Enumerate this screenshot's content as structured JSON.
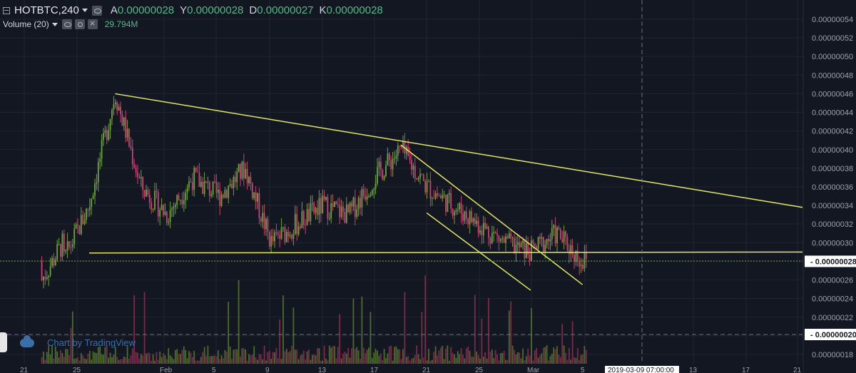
{
  "legend": {
    "symbol": "HOTBTC",
    "interval": "240",
    "ohlc": [
      {
        "key": "A",
        "value": "0.00000028"
      },
      {
        "key": "Y",
        "value": "0.00000028"
      },
      {
        "key": "D",
        "value": "0.00000027"
      },
      {
        "key": "K",
        "value": "0.00000028"
      }
    ],
    "volume_label": "Volume (20)",
    "volume_value": "29.794M"
  },
  "watermark": "Chart by TradingView",
  "colors": {
    "background": "#131722",
    "up": "#6ba539",
    "down": "#d13f75",
    "trendline": "#e3e660",
    "grid": "#1f2430",
    "text": "#9aa0ad",
    "volume_up": "#4d6b2a",
    "volume_down": "#7c2a4a"
  },
  "price_axis": {
    "labels": [
      "0.00000054",
      "0.00000052",
      "0.00000050",
      "0.00000048",
      "0.00000046",
      "0.00000044",
      "0.00000042",
      "0.00000040",
      "0.00000038",
      "0.00000036",
      "0.00000034",
      "0.00000032",
      "0.00000030",
      "0.00000026",
      "0.00000024",
      "0.00000022",
      "0.00000018"
    ],
    "last_price": "0.00000028",
    "crosshair_price": "0.00000020"
  },
  "time_axis": {
    "labels": [
      "21",
      "25",
      "Feb",
      "5",
      "9",
      "13",
      "17",
      "21",
      "25",
      "Mar",
      "5",
      "13",
      "17",
      "21"
    ],
    "crosshair_time": "2019-03-09 07:00:00"
  },
  "chart_data": {
    "type": "candlestick",
    "ylim": [
      1.7e-07,
      5.5e-07
    ],
    "candles_close_approx": [
      {
        "date": "2019-01-24",
        "close": 2.8e-07
      },
      {
        "date": "2019-01-26",
        "close": 3.4e-07
      },
      {
        "date": "2019-01-28",
        "close": 4.6e-07
      },
      {
        "date": "2019-01-30",
        "close": 3.6e-07
      },
      {
        "date": "2019-02-01",
        "close": 3.3e-07
      },
      {
        "date": "2019-02-03",
        "close": 3.7e-07
      },
      {
        "date": "2019-02-05",
        "close": 3.5e-07
      },
      {
        "date": "2019-02-07",
        "close": 3.8e-07
      },
      {
        "date": "2019-02-09",
        "close": 3e-07
      },
      {
        "date": "2019-02-11",
        "close": 3.2e-07
      },
      {
        "date": "2019-02-13",
        "close": 3.4e-07
      },
      {
        "date": "2019-02-15",
        "close": 3.3e-07
      },
      {
        "date": "2019-02-17",
        "close": 3.7e-07
      },
      {
        "date": "2019-02-19",
        "close": 4e-07
      },
      {
        "date": "2019-02-21",
        "close": 3.6e-07
      },
      {
        "date": "2019-02-23",
        "close": 3.4e-07
      },
      {
        "date": "2019-02-25",
        "close": 3.2e-07
      },
      {
        "date": "2019-02-27",
        "close": 3e-07
      },
      {
        "date": "2019-03-01",
        "close": 2.9e-07
      },
      {
        "date": "2019-03-03",
        "close": 3.1e-07
      },
      {
        "date": "2019-03-05",
        "close": 2.8e-07
      }
    ],
    "trendlines": [
      {
        "name": "upper",
        "from": {
          "date": "2019-01-28",
          "price": 4.6e-07
        },
        "to": {
          "date": "2019-03-22",
          "price": 3.38e-07
        }
      },
      {
        "name": "support",
        "from": {
          "date": "2019-01-26",
          "price": 2.89e-07
        },
        "to": {
          "date": "2019-03-22",
          "price": 2.9e-07
        }
      },
      {
        "name": "channel-top",
        "from": {
          "date": "2019-02-19",
          "price": 4.05e-07
        },
        "to": {
          "date": "2019-03-05",
          "price": 2.55e-07
        }
      },
      {
        "name": "channel-bottom",
        "from": {
          "date": "2019-02-21",
          "price": 3.32e-07
        },
        "to": {
          "date": "2019-03-01",
          "price": 2.49e-07
        }
      }
    ]
  }
}
